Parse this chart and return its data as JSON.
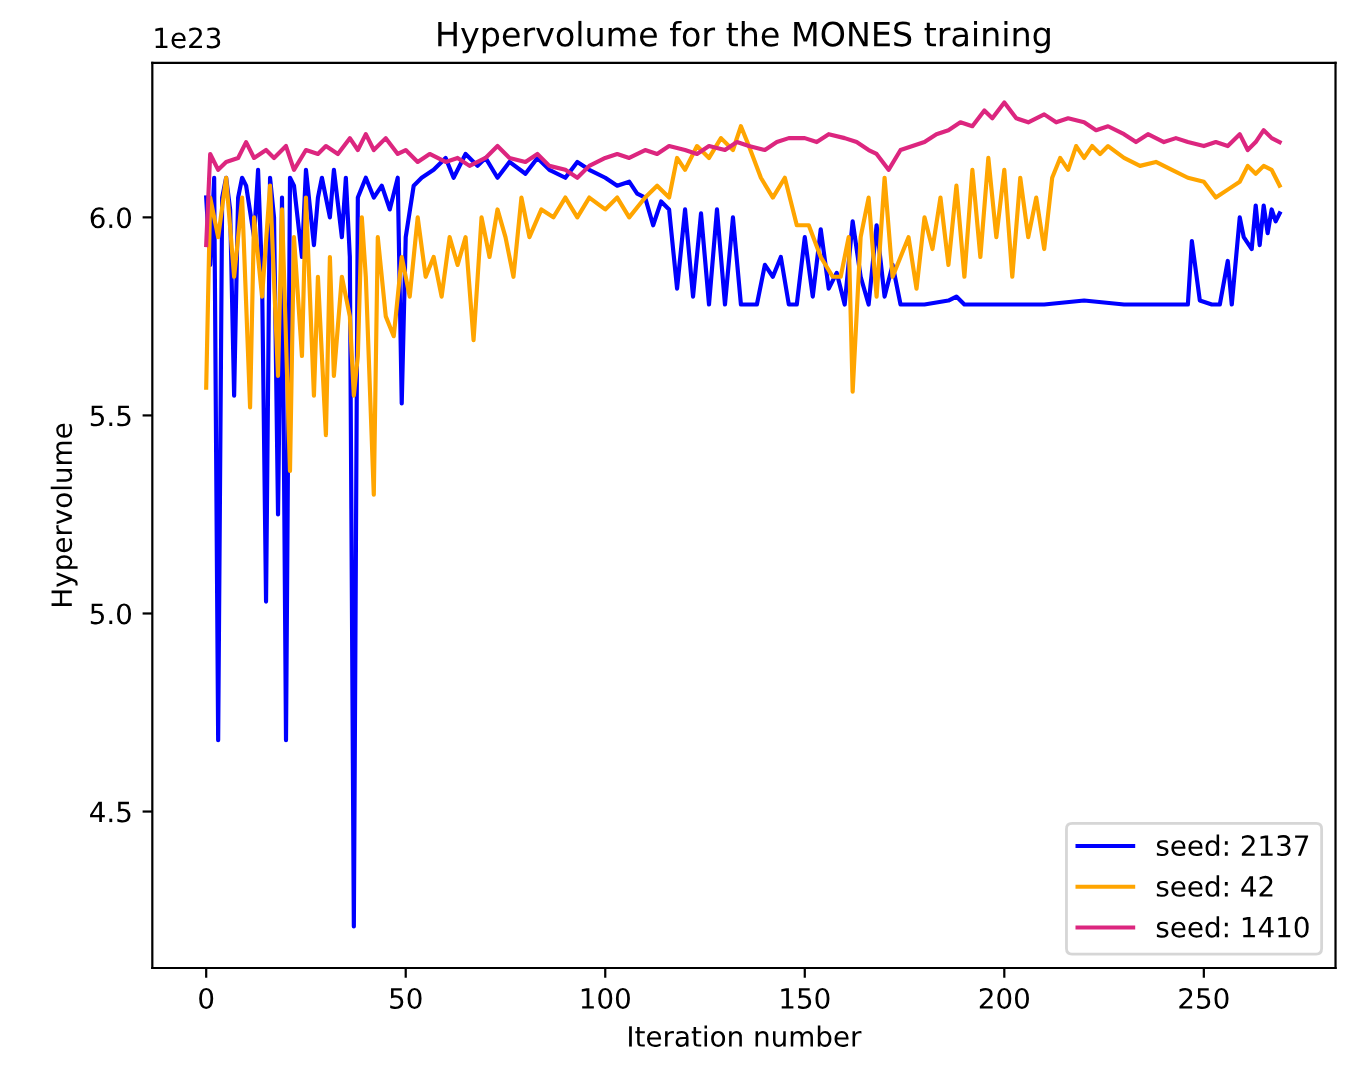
{
  "chart_data": {
    "type": "line",
    "title": "Hypervolume for the MONES training",
    "xlabel": "Iteration number",
    "ylabel": "Hypervolume",
    "annotations": [
      "1e23"
    ],
    "xlim": [
      -13.5,
      283
    ],
    "ylim": [
      4.105,
      6.39
    ],
    "xticks": [
      0,
      50,
      100,
      150,
      200,
      250
    ],
    "yticks": [
      {
        "value": 4.5,
        "label": "4.5"
      },
      {
        "value": 5,
        "label": "5.0"
      },
      {
        "value": 5.5,
        "label": "5.5"
      },
      {
        "value": 6,
        "label": "6.0"
      }
    ],
    "legend": "bottom right",
    "grid": false,
    "marker": "none",
    "line_style": "solid",
    "series": [
      {
        "name": "seed: 2137",
        "color": "#0000ff",
        "x": [
          0,
          1,
          2,
          3,
          4,
          5,
          6,
          7,
          8,
          9,
          10,
          12,
          13,
          14,
          15,
          16,
          17,
          18,
          19,
          20,
          21,
          22,
          24,
          25,
          27,
          28,
          29,
          31,
          32,
          34,
          35,
          36,
          37,
          38,
          40,
          42,
          44,
          46,
          48,
          49,
          50,
          52,
          54,
          57,
          60,
          62,
          65,
          68,
          70,
          73,
          76,
          80,
          83,
          86,
          90,
          93,
          96,
          100,
          103,
          106,
          108,
          110,
          112,
          114,
          116,
          118,
          120,
          122,
          124,
          126,
          128,
          130,
          132,
          134,
          136,
          138,
          140,
          142,
          144,
          146,
          148,
          150,
          152,
          154,
          156,
          158,
          160,
          162,
          164,
          166,
          168,
          170,
          172,
          174,
          176,
          180,
          186,
          188,
          190,
          200,
          210,
          220,
          230,
          240,
          246,
          247,
          249,
          252,
          254,
          256,
          257,
          259,
          260,
          262,
          263,
          264,
          265,
          266,
          267,
          268,
          269
        ],
        "values": [
          6.05,
          5.88,
          6.1,
          4.68,
          6.05,
          6.1,
          6.02,
          5.55,
          6.05,
          6.1,
          6.08,
          5.95,
          6.12,
          5.85,
          5.03,
          6.1,
          6.0,
          5.25,
          6.05,
          4.68,
          6.1,
          6.08,
          5.9,
          6.12,
          5.93,
          6.05,
          6.1,
          6.0,
          6.12,
          5.95,
          6.1,
          5.9,
          4.21,
          6.05,
          6.1,
          6.05,
          6.08,
          6.02,
          6.1,
          5.53,
          5.95,
          6.08,
          6.1,
          6.12,
          6.15,
          6.1,
          6.16,
          6.13,
          6.15,
          6.1,
          6.14,
          6.11,
          6.15,
          6.12,
          6.1,
          6.14,
          6.12,
          6.1,
          6.08,
          6.09,
          6.06,
          6.05,
          5.98,
          6.04,
          6.02,
          5.82,
          6.02,
          5.8,
          6.01,
          5.78,
          6.02,
          5.78,
          6.0,
          5.78,
          5.78,
          5.78,
          5.88,
          5.85,
          5.9,
          5.78,
          5.78,
          5.95,
          5.8,
          5.97,
          5.82,
          5.86,
          5.78,
          5.99,
          5.85,
          5.78,
          5.98,
          5.8,
          5.88,
          5.78,
          5.78,
          5.78,
          5.79,
          5.8,
          5.78,
          5.78,
          5.78,
          5.79,
          5.78,
          5.78,
          5.78,
          5.94,
          5.79,
          5.78,
          5.78,
          5.89,
          5.78,
          6.0,
          5.95,
          5.92,
          6.03,
          5.93,
          6.03,
          5.96,
          6.02,
          5.99,
          6.01
        ]
      },
      {
        "name": "seed: 42",
        "color": "#ffa500",
        "x": [
          0,
          1,
          3,
          5,
          7,
          9,
          11,
          12,
          14,
          16,
          18,
          19,
          21,
          22,
          24,
          25,
          27,
          28,
          30,
          31,
          32,
          34,
          36,
          37,
          38,
          39,
          40,
          42,
          43,
          45,
          47,
          49,
          51,
          53,
          55,
          57,
          59,
          61,
          63,
          65,
          67,
          69,
          71,
          73,
          75,
          77,
          79,
          81,
          84,
          87,
          90,
          93,
          96,
          100,
          103,
          106,
          110,
          113,
          116,
          118,
          120,
          123,
          126,
          129,
          132,
          134,
          136,
          139,
          142,
          145,
          148,
          151,
          154,
          157,
          159,
          161,
          162,
          164,
          166,
          168,
          170,
          172,
          174,
          176,
          178,
          180,
          182,
          184,
          186,
          188,
          190,
          192,
          194,
          196,
          198,
          200,
          202,
          204,
          206,
          208,
          210,
          212,
          214,
          216,
          218,
          220,
          222,
          224,
          226,
          230,
          234,
          238,
          242,
          246,
          250,
          253,
          256,
          259,
          261,
          263,
          265,
          267,
          269
        ],
        "values": [
          5.57,
          6.05,
          5.95,
          6.1,
          5.85,
          6.05,
          5.52,
          6.0,
          5.8,
          6.08,
          5.6,
          6.02,
          5.36,
          5.95,
          5.65,
          6.05,
          5.55,
          5.85,
          5.45,
          5.9,
          5.6,
          5.85,
          5.75,
          5.55,
          5.65,
          6.0,
          5.85,
          5.3,
          5.95,
          5.75,
          5.7,
          5.9,
          5.8,
          6.0,
          5.85,
          5.9,
          5.8,
          5.95,
          5.88,
          5.95,
          5.69,
          6.0,
          5.9,
          6.02,
          5.95,
          5.85,
          6.05,
          5.95,
          6.02,
          6.0,
          6.05,
          6.0,
          6.05,
          6.02,
          6.05,
          6.0,
          6.05,
          6.08,
          6.05,
          6.15,
          6.12,
          6.18,
          6.15,
          6.2,
          6.17,
          6.23,
          6.18,
          6.1,
          6.05,
          6.1,
          5.98,
          5.98,
          5.9,
          5.85,
          5.85,
          5.95,
          5.56,
          5.95,
          6.05,
          5.8,
          6.1,
          5.85,
          5.9,
          5.95,
          5.82,
          6.0,
          5.92,
          6.05,
          5.88,
          6.08,
          5.85,
          6.12,
          5.9,
          6.15,
          5.95,
          6.12,
          5.85,
          6.1,
          5.95,
          6.05,
          5.92,
          6.1,
          6.15,
          6.12,
          6.18,
          6.15,
          6.18,
          6.16,
          6.18,
          6.15,
          6.13,
          6.14,
          6.12,
          6.1,
          6.09,
          6.05,
          6.07,
          6.09,
          6.13,
          6.11,
          6.13,
          6.12,
          6.08
        ]
      },
      {
        "name": "seed: 1410",
        "color": "#dc267f",
        "x": [
          0,
          1,
          3,
          5,
          8,
          10,
          12,
          15,
          17,
          20,
          22,
          25,
          28,
          30,
          33,
          36,
          38,
          40,
          42,
          45,
          48,
          50,
          53,
          56,
          60,
          63,
          66,
          70,
          73,
          76,
          80,
          83,
          86,
          90,
          93,
          96,
          100,
          103,
          106,
          110,
          113,
          116,
          120,
          123,
          126,
          130,
          133,
          136,
          140,
          143,
          146,
          150,
          153,
          156,
          160,
          163,
          166,
          168,
          171,
          174,
          177,
          180,
          183,
          186,
          189,
          192,
          195,
          197,
          200,
          203,
          206,
          210,
          213,
          216,
          220,
          223,
          226,
          230,
          233,
          236,
          240,
          243,
          246,
          250,
          253,
          256,
          259,
          261,
          263,
          265,
          267,
          269
        ],
        "values": [
          5.93,
          6.16,
          6.12,
          6.14,
          6.15,
          6.19,
          6.15,
          6.17,
          6.15,
          6.18,
          6.12,
          6.17,
          6.16,
          6.18,
          6.16,
          6.2,
          6.17,
          6.21,
          6.17,
          6.2,
          6.16,
          6.17,
          6.14,
          6.16,
          6.14,
          6.15,
          6.13,
          6.15,
          6.18,
          6.15,
          6.14,
          6.16,
          6.13,
          6.12,
          6.1,
          6.13,
          6.15,
          6.16,
          6.15,
          6.17,
          6.16,
          6.18,
          6.17,
          6.16,
          6.18,
          6.17,
          6.19,
          6.18,
          6.17,
          6.19,
          6.2,
          6.2,
          6.19,
          6.21,
          6.2,
          6.19,
          6.17,
          6.16,
          6.12,
          6.17,
          6.18,
          6.19,
          6.21,
          6.22,
          6.24,
          6.23,
          6.27,
          6.25,
          6.29,
          6.25,
          6.24,
          6.26,
          6.24,
          6.25,
          6.24,
          6.22,
          6.23,
          6.21,
          6.19,
          6.21,
          6.19,
          6.2,
          6.19,
          6.18,
          6.19,
          6.18,
          6.21,
          6.17,
          6.19,
          6.22,
          6.2,
          6.19
        ]
      }
    ]
  }
}
